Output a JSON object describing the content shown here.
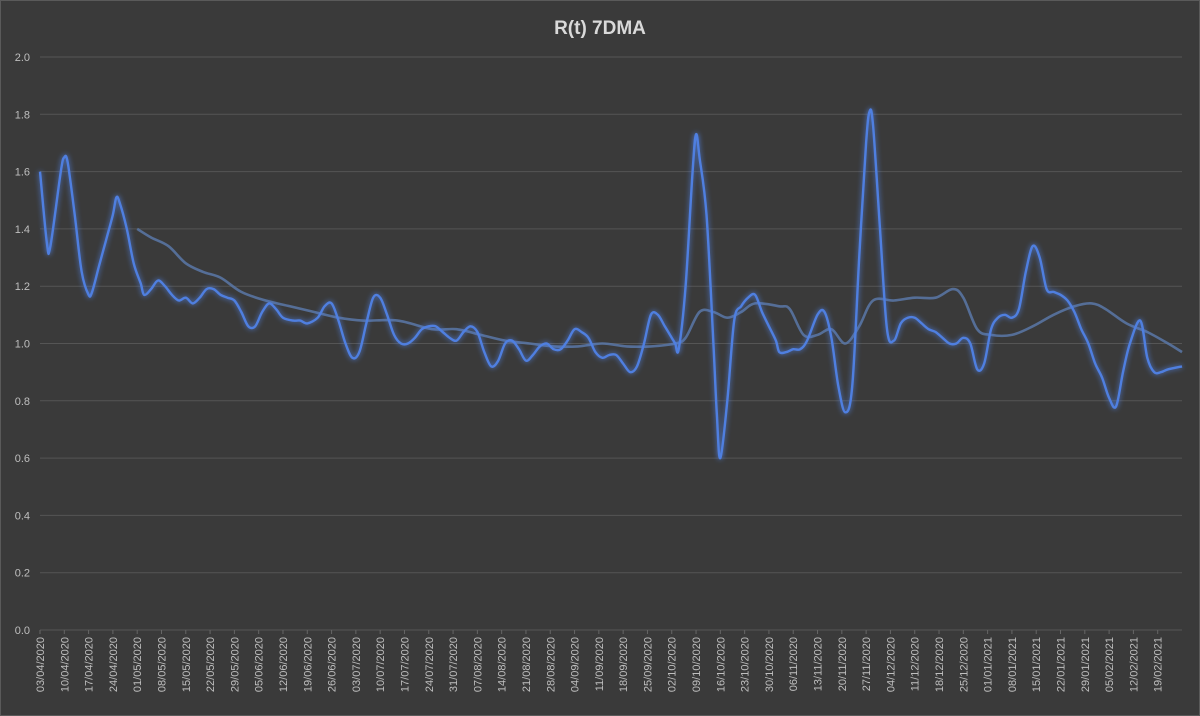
{
  "chart_data": {
    "type": "line",
    "title": "R(t) 7DMA",
    "xlabel": "",
    "ylabel": "",
    "ylim": [
      0,
      2.0
    ],
    "y_ticks": [
      "0.0",
      "0.2",
      "0.4",
      "0.6",
      "0.8",
      "1.0",
      "1.2",
      "1.4",
      "1.6",
      "1.8",
      "2.0"
    ],
    "grid": true,
    "x_start": "2020-04-03",
    "x_end": "2021-02-26",
    "x_tick_labels": [
      "03/04/2020",
      "10/04/2020",
      "17/04/2020",
      "24/04/2020",
      "01/05/2020",
      "08/05/2020",
      "15/05/2020",
      "22/05/2020",
      "29/05/2020",
      "05/06/2020",
      "12/06/2020",
      "19/06/2020",
      "26/06/2020",
      "03/07/2020",
      "10/07/2020",
      "17/07/2020",
      "24/07/2020",
      "31/07/2020",
      "07/08/2020",
      "14/08/2020",
      "21/08/2020",
      "28/08/2020",
      "04/09/2020",
      "11/09/2020",
      "18/09/2020",
      "25/09/2020",
      "02/10/2020",
      "09/10/2020",
      "16/10/2020",
      "23/10/2020",
      "30/10/2020",
      "06/11/2020",
      "13/11/2020",
      "20/11/2020",
      "27/11/2020",
      "04/12/2020",
      "11/12/2020",
      "18/12/2020",
      "25/12/2020",
      "01/01/2021",
      "08/01/2021",
      "15/01/2021",
      "22/01/2021",
      "29/01/2021",
      "05/02/2021",
      "12/02/2021",
      "19/02/2021"
    ],
    "series": [
      {
        "color": "#4f7fe0",
        "style": "bright-glow",
        "points": [
          [
            "2020-04-03",
            1.6
          ],
          [
            "2020-04-05",
            1.35
          ],
          [
            "2020-04-06",
            1.34
          ],
          [
            "2020-04-09",
            1.6
          ],
          [
            "2020-04-10",
            1.65
          ],
          [
            "2020-04-11",
            1.63
          ],
          [
            "2020-04-13",
            1.45
          ],
          [
            "2020-04-15",
            1.25
          ],
          [
            "2020-04-17",
            1.17
          ],
          [
            "2020-04-18",
            1.18
          ],
          [
            "2020-04-20",
            1.27
          ],
          [
            "2020-04-22",
            1.36
          ],
          [
            "2020-04-24",
            1.45
          ],
          [
            "2020-04-25",
            1.51
          ],
          [
            "2020-04-26",
            1.49
          ],
          [
            "2020-04-28",
            1.4
          ],
          [
            "2020-04-30",
            1.28
          ],
          [
            "2020-05-02",
            1.21
          ],
          [
            "2020-05-03",
            1.17
          ],
          [
            "2020-05-05",
            1.19
          ],
          [
            "2020-05-07",
            1.22
          ],
          [
            "2020-05-09",
            1.2
          ],
          [
            "2020-05-11",
            1.17
          ],
          [
            "2020-05-13",
            1.15
          ],
          [
            "2020-05-15",
            1.16
          ],
          [
            "2020-05-17",
            1.14
          ],
          [
            "2020-05-19",
            1.16
          ],
          [
            "2020-05-21",
            1.19
          ],
          [
            "2020-05-23",
            1.19
          ],
          [
            "2020-05-25",
            1.17
          ],
          [
            "2020-05-27",
            1.16
          ],
          [
            "2020-05-29",
            1.15
          ],
          [
            "2020-05-31",
            1.11
          ],
          [
            "2020-06-02",
            1.06
          ],
          [
            "2020-06-04",
            1.06
          ],
          [
            "2020-06-06",
            1.11
          ],
          [
            "2020-06-08",
            1.14
          ],
          [
            "2020-06-10",
            1.12
          ],
          [
            "2020-06-12",
            1.09
          ],
          [
            "2020-06-15",
            1.08
          ],
          [
            "2020-06-17",
            1.08
          ],
          [
            "2020-06-19",
            1.07
          ],
          [
            "2020-06-22",
            1.09
          ],
          [
            "2020-06-24",
            1.13
          ],
          [
            "2020-06-26",
            1.14
          ],
          [
            "2020-06-28",
            1.08
          ],
          [
            "2020-06-30",
            1.0
          ],
          [
            "2020-07-02",
            0.95
          ],
          [
            "2020-07-04",
            0.97
          ],
          [
            "2020-07-06",
            1.07
          ],
          [
            "2020-07-08",
            1.16
          ],
          [
            "2020-07-10",
            1.16
          ],
          [
            "2020-07-12",
            1.1
          ],
          [
            "2020-07-14",
            1.03
          ],
          [
            "2020-07-16",
            1.0
          ],
          [
            "2020-07-18",
            1.0
          ],
          [
            "2020-07-20",
            1.02
          ],
          [
            "2020-07-22",
            1.05
          ],
          [
            "2020-07-24",
            1.06
          ],
          [
            "2020-07-26",
            1.06
          ],
          [
            "2020-07-28",
            1.04
          ],
          [
            "2020-07-30",
            1.02
          ],
          [
            "2020-08-01",
            1.01
          ],
          [
            "2020-08-03",
            1.04
          ],
          [
            "2020-08-05",
            1.06
          ],
          [
            "2020-08-07",
            1.04
          ],
          [
            "2020-08-09",
            0.97
          ],
          [
            "2020-08-11",
            0.92
          ],
          [
            "2020-08-13",
            0.94
          ],
          [
            "2020-08-15",
            1.0
          ],
          [
            "2020-08-17",
            1.01
          ],
          [
            "2020-08-19",
            0.98
          ],
          [
            "2020-08-21",
            0.94
          ],
          [
            "2020-08-23",
            0.96
          ],
          [
            "2020-08-25",
            0.99
          ],
          [
            "2020-08-27",
            1.0
          ],
          [
            "2020-08-29",
            0.98
          ],
          [
            "2020-08-31",
            0.98
          ],
          [
            "2020-09-02",
            1.01
          ],
          [
            "2020-09-04",
            1.05
          ],
          [
            "2020-09-06",
            1.04
          ],
          [
            "2020-09-08",
            1.02
          ],
          [
            "2020-09-10",
            0.97
          ],
          [
            "2020-09-12",
            0.95
          ],
          [
            "2020-09-14",
            0.96
          ],
          [
            "2020-09-16",
            0.96
          ],
          [
            "2020-09-18",
            0.93
          ],
          [
            "2020-09-20",
            0.9
          ],
          [
            "2020-09-22",
            0.92
          ],
          [
            "2020-09-24",
            1.0
          ],
          [
            "2020-09-26",
            1.1
          ],
          [
            "2020-09-28",
            1.1
          ],
          [
            "2020-09-30",
            1.06
          ],
          [
            "2020-10-02",
            1.02
          ],
          [
            "2020-10-03",
            1.0
          ],
          [
            "2020-10-04",
            0.98
          ],
          [
            "2020-10-06",
            1.2
          ],
          [
            "2020-10-08",
            1.6
          ],
          [
            "2020-10-09",
            1.73
          ],
          [
            "2020-10-10",
            1.65
          ],
          [
            "2020-10-12",
            1.45
          ],
          [
            "2020-10-14",
            1.0
          ],
          [
            "2020-10-15",
            0.75
          ],
          [
            "2020-10-16",
            0.6
          ],
          [
            "2020-10-18",
            0.8
          ],
          [
            "2020-10-20",
            1.08
          ],
          [
            "2020-10-22",
            1.13
          ],
          [
            "2020-10-24",
            1.16
          ],
          [
            "2020-10-26",
            1.17
          ],
          [
            "2020-10-28",
            1.11
          ],
          [
            "2020-10-30",
            1.06
          ],
          [
            "2020-11-01",
            1.01
          ],
          [
            "2020-11-02",
            0.97
          ],
          [
            "2020-11-04",
            0.97
          ],
          [
            "2020-11-06",
            0.98
          ],
          [
            "2020-11-08",
            0.98
          ],
          [
            "2020-11-10",
            1.01
          ],
          [
            "2020-11-13",
            1.1
          ],
          [
            "2020-11-15",
            1.11
          ],
          [
            "2020-11-17",
            1.02
          ],
          [
            "2020-11-19",
            0.85
          ],
          [
            "2020-11-21",
            0.76
          ],
          [
            "2020-11-23",
            0.85
          ],
          [
            "2020-11-25",
            1.3
          ],
          [
            "2020-11-27",
            1.7
          ],
          [
            "2020-11-28",
            1.81
          ],
          [
            "2020-11-29",
            1.76
          ],
          [
            "2020-12-01",
            1.4
          ],
          [
            "2020-12-03",
            1.05
          ],
          [
            "2020-12-05",
            1.01
          ],
          [
            "2020-12-07",
            1.07
          ],
          [
            "2020-12-09",
            1.09
          ],
          [
            "2020-12-11",
            1.09
          ],
          [
            "2020-12-13",
            1.07
          ],
          [
            "2020-12-15",
            1.05
          ],
          [
            "2020-12-17",
            1.04
          ],
          [
            "2020-12-19",
            1.02
          ],
          [
            "2020-12-21",
            1.0
          ],
          [
            "2020-12-23",
            1.0
          ],
          [
            "2020-12-25",
            1.02
          ],
          [
            "2020-12-27",
            1.0
          ],
          [
            "2020-12-29",
            0.91
          ],
          [
            "2020-12-31",
            0.93
          ],
          [
            "2021-01-02",
            1.05
          ],
          [
            "2021-01-04",
            1.09
          ],
          [
            "2021-01-06",
            1.1
          ],
          [
            "2021-01-08",
            1.09
          ],
          [
            "2021-01-10",
            1.12
          ],
          [
            "2021-01-12",
            1.25
          ],
          [
            "2021-01-14",
            1.34
          ],
          [
            "2021-01-16",
            1.3
          ],
          [
            "2021-01-18",
            1.19
          ],
          [
            "2021-01-20",
            1.18
          ],
          [
            "2021-01-22",
            1.17
          ],
          [
            "2021-01-24",
            1.15
          ],
          [
            "2021-01-26",
            1.11
          ],
          [
            "2021-01-28",
            1.05
          ],
          [
            "2021-01-30",
            1.0
          ],
          [
            "2021-02-01",
            0.93
          ],
          [
            "2021-02-03",
            0.88
          ],
          [
            "2021-02-05",
            0.81
          ],
          [
            "2021-02-07",
            0.78
          ],
          [
            "2021-02-09",
            0.9
          ],
          [
            "2021-02-11",
            1.0
          ],
          [
            "2021-02-14",
            1.08
          ],
          [
            "2021-02-16",
            0.95
          ],
          [
            "2021-02-18",
            0.9
          ],
          [
            "2021-02-20",
            0.9
          ],
          [
            "2021-02-22",
            0.91
          ],
          [
            "2021-02-26",
            0.92
          ]
        ]
      },
      {
        "color": "#5b78a8",
        "style": "muted",
        "points": [
          [
            "2020-05-01",
            1.4
          ],
          [
            "2020-05-05",
            1.37
          ],
          [
            "2020-05-10",
            1.34
          ],
          [
            "2020-05-15",
            1.28
          ],
          [
            "2020-05-20",
            1.25
          ],
          [
            "2020-05-25",
            1.23
          ],
          [
            "2020-05-31",
            1.18
          ],
          [
            "2020-06-07",
            1.15
          ],
          [
            "2020-06-14",
            1.13
          ],
          [
            "2020-06-21",
            1.11
          ],
          [
            "2020-06-28",
            1.09
          ],
          [
            "2020-07-05",
            1.08
          ],
          [
            "2020-07-15",
            1.08
          ],
          [
            "2020-07-25",
            1.05
          ],
          [
            "2020-08-01",
            1.05
          ],
          [
            "2020-08-08",
            1.03
          ],
          [
            "2020-08-15",
            1.01
          ],
          [
            "2020-08-22",
            1.0
          ],
          [
            "2020-08-29",
            0.99
          ],
          [
            "2020-09-05",
            0.99
          ],
          [
            "2020-09-12",
            1.0
          ],
          [
            "2020-09-19",
            0.99
          ],
          [
            "2020-09-26",
            0.99
          ],
          [
            "2020-10-03",
            1.0
          ],
          [
            "2020-10-06",
            1.02
          ],
          [
            "2020-10-10",
            1.11
          ],
          [
            "2020-10-14",
            1.11
          ],
          [
            "2020-10-18",
            1.09
          ],
          [
            "2020-10-22",
            1.11
          ],
          [
            "2020-10-26",
            1.14
          ],
          [
            "2020-11-02",
            1.13
          ],
          [
            "2020-11-05",
            1.12
          ],
          [
            "2020-11-09",
            1.03
          ],
          [
            "2020-11-13",
            1.03
          ],
          [
            "2020-11-17",
            1.05
          ],
          [
            "2020-11-21",
            1.0
          ],
          [
            "2020-11-25",
            1.06
          ],
          [
            "2020-11-29",
            1.15
          ],
          [
            "2020-12-05",
            1.15
          ],
          [
            "2020-12-11",
            1.16
          ],
          [
            "2020-12-17",
            1.16
          ],
          [
            "2020-12-22",
            1.19
          ],
          [
            "2020-12-25",
            1.16
          ],
          [
            "2020-12-29",
            1.05
          ],
          [
            "2021-01-02",
            1.03
          ],
          [
            "2021-01-08",
            1.03
          ],
          [
            "2021-01-14",
            1.06
          ],
          [
            "2021-01-20",
            1.1
          ],
          [
            "2021-01-26",
            1.13
          ],
          [
            "2021-01-31",
            1.14
          ],
          [
            "2021-02-04",
            1.12
          ],
          [
            "2021-02-10",
            1.07
          ],
          [
            "2021-02-16",
            1.04
          ],
          [
            "2021-02-22",
            1.0
          ],
          [
            "2021-02-26",
            0.97
          ]
        ]
      }
    ],
    "reference_lines": [
      {
        "y": 1.0,
        "color": "#ed7d31"
      },
      {
        "y": 0.6,
        "color": "#d9d9d9"
      }
    ]
  }
}
